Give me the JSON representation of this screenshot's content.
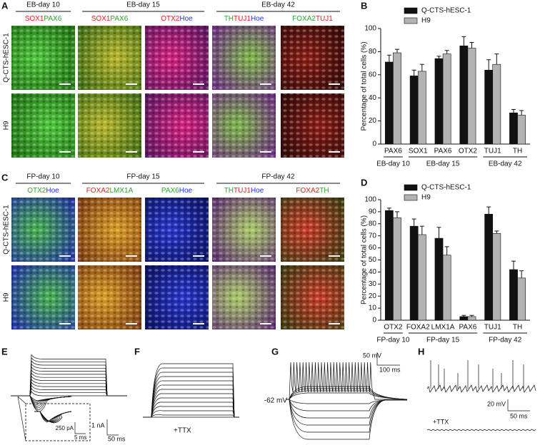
{
  "panels": {
    "A": {
      "letter": "A",
      "headers": [
        "EB-day 10",
        "EB-day 15",
        "EB-day 42"
      ],
      "stains": [
        [
          {
            "text": "SOX1",
            "color": "#e0201b"
          },
          {
            "text": "PAX6",
            "color": "#2aa52a"
          }
        ],
        [
          {
            "text": "SOX1",
            "color": "#e0201b"
          },
          {
            "text": "PAX6",
            "color": "#2aa52a"
          }
        ],
        [
          {
            "text": "OTX2",
            "color": "#e0201b"
          },
          {
            "text": "Hoe",
            "color": "#2233dd"
          }
        ],
        [
          {
            "text": "TH",
            "color": "#2aa52a"
          },
          {
            "text": "TUJ1",
            "color": "#e0201b"
          },
          {
            "text": "Hoe",
            "color": "#2233dd"
          }
        ],
        [
          {
            "text": "FOXA2",
            "color": "#2aa52a"
          },
          {
            "text": "TUJ1",
            "color": "#e0201b"
          }
        ]
      ],
      "rows": [
        "Q-CTS-hESC-1",
        "H9"
      ]
    },
    "C": {
      "letter": "C",
      "headers": [
        "FP-day 10",
        "FP-day 15",
        "FP-day 42"
      ],
      "stains": [
        [
          {
            "text": "OTX2",
            "color": "#2aa52a"
          },
          {
            "text": "Hoe",
            "color": "#2233dd"
          }
        ],
        [
          {
            "text": "FOXA2",
            "color": "#e0201b"
          },
          {
            "text": "LMX1A",
            "color": "#2aa52a"
          }
        ],
        [
          {
            "text": "PAX6",
            "color": "#2aa52a"
          },
          {
            "text": "Hoe",
            "color": "#2233dd"
          }
        ],
        [
          {
            "text": "TH",
            "color": "#2aa52a"
          },
          {
            "text": "TUJ1",
            "color": "#e0201b"
          },
          {
            "text": "Hoe",
            "color": "#2233dd"
          }
        ],
        [
          {
            "text": "FOXA2",
            "color": "#e0201b"
          },
          {
            "text": "TH",
            "color": "#2aa52a"
          }
        ]
      ],
      "rows": [
        "Q-CTS-hESC-1",
        "H9"
      ]
    },
    "E": {
      "letter": "E",
      "labels": [
        "1 nA",
        "50 ms",
        "250 pA",
        "5 ms"
      ]
    },
    "F": {
      "letter": "F",
      "labels": [
        "+TTX"
      ]
    },
    "G": {
      "letter": "G",
      "labels": [
        "50 mV",
        "100 ms",
        "-62 mV"
      ]
    },
    "H": {
      "letter": "H",
      "labels": [
        "20 mV",
        "50 ms",
        "+TTX"
      ]
    }
  },
  "chart_data": [
    {
      "type": "bar",
      "panel": "B",
      "y_label": "Percentage of total cells (%)",
      "groups": [
        {
          "label": "EB-day 10",
          "categories": [
            "PAX6"
          ]
        },
        {
          "label": "EB-day 15",
          "categories": [
            "SOX1",
            "PAX6",
            "OTX2"
          ]
        },
        {
          "label": "EB-day 42",
          "categories": [
            "TUJ1",
            "TH"
          ]
        }
      ],
      "series": [
        {
          "name": "Q-CTS-hESC-1",
          "color": "#111111",
          "values": [
            71,
            59,
            74,
            85,
            64,
            27
          ],
          "errors": [
            6,
            5,
            2,
            8,
            9,
            3
          ]
        },
        {
          "name": "H9",
          "color": "#b3b3b3",
          "values": [
            79,
            63,
            78,
            83,
            69,
            25
          ],
          "errors": [
            3,
            6,
            3,
            5,
            9,
            4
          ]
        }
      ],
      "ylim": [
        0,
        100
      ],
      "yticks": [
        0,
        20,
        40,
        60,
        80,
        100
      ],
      "legend": "top"
    },
    {
      "type": "bar",
      "panel": "D",
      "y_label": "Percentage of total cells (%)",
      "groups": [
        {
          "label": "FP-day 10",
          "categories": [
            "OTX2"
          ]
        },
        {
          "label": "FP-day 15",
          "categories": [
            "FOXA2",
            "LMX1A",
            "PAX6"
          ]
        },
        {
          "label": "FP-day 42",
          "categories": [
            "TUJ1",
            "TH"
          ]
        }
      ],
      "series": [
        {
          "name": "Q-CTS-hESC-1",
          "color": "#111111",
          "values": [
            91,
            78,
            68,
            3,
            88,
            42
          ],
          "errors": [
            2,
            6,
            9,
            1,
            6,
            7
          ]
        },
        {
          "name": "H9",
          "color": "#b3b3b3",
          "values": [
            85,
            71,
            54,
            3,
            72,
            35
          ],
          "errors": [
            5,
            7,
            7,
            1,
            2,
            6
          ]
        }
      ],
      "ylim": [
        0,
        100
      ],
      "yticks": [
        0,
        10,
        20,
        30,
        40,
        50,
        60,
        70,
        80,
        90,
        100
      ],
      "legend": "top"
    }
  ]
}
